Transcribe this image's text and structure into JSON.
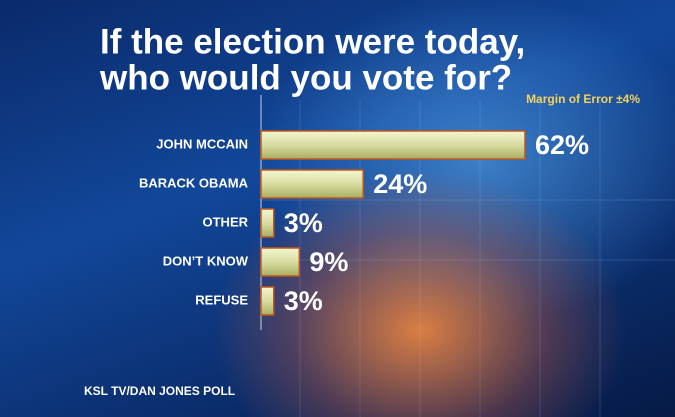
{
  "chart_data": {
    "type": "bar",
    "orientation": "horizontal",
    "title": [
      "If the election were today,",
      "who would you vote for?"
    ],
    "subtitle": "Margin of Error ±4%",
    "source": "KSL TV/DAN JONES POLL",
    "categories": [
      "JOHN MCCAIN",
      "BARACK OBAMA",
      "OTHER",
      "DON’T KNOW",
      "REFUSE"
    ],
    "values": [
      62,
      24,
      3,
      9,
      3
    ],
    "value_labels": [
      "62%",
      "24%",
      "3%",
      "9%",
      "3%"
    ],
    "color": "#d8dca0"
  }
}
